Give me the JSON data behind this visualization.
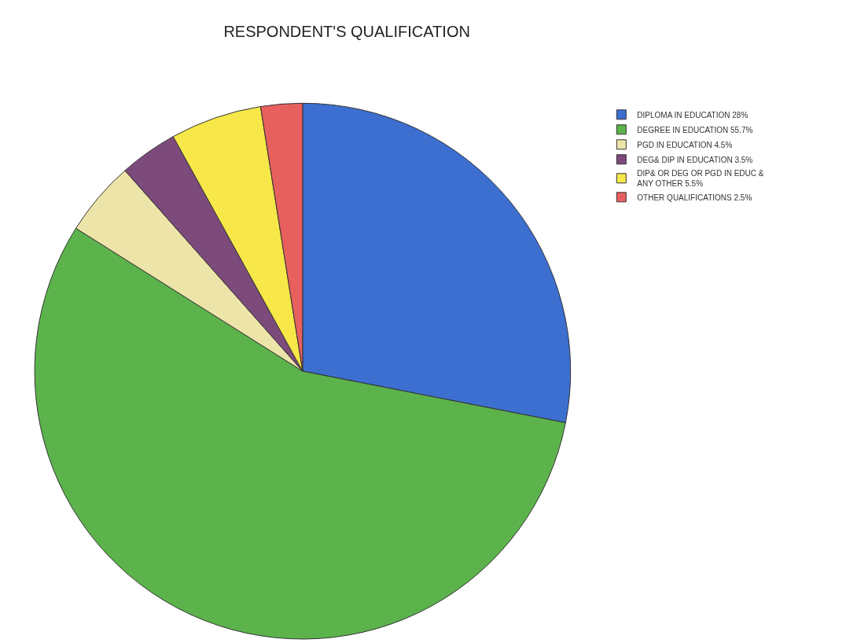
{
  "chart_data": {
    "type": "pie",
    "title": "RESPONDENT'S QUALIFICATION",
    "categories": [
      "DIPLOMA IN EDUCATION 28%",
      "DEGREE IN EDUCATION 55.7%",
      "PGD IN EDUCATION 4.5%",
      "DEG& DIP IN EDUCATION 3.5%",
      "DIP& OR DEG OR PGD IN EDUC &\nANY OTHER 5.5%",
      "OTHER QUALIFICATIONS 2.5%"
    ],
    "values": [
      28,
      55.7,
      4.5,
      3.5,
      5.5,
      2.5
    ],
    "colors": [
      "#3c6fd0",
      "#5cb34c",
      "#ede4a9",
      "#7d4a7c",
      "#f7e748",
      "#e8605e"
    ],
    "legend": "top right"
  }
}
